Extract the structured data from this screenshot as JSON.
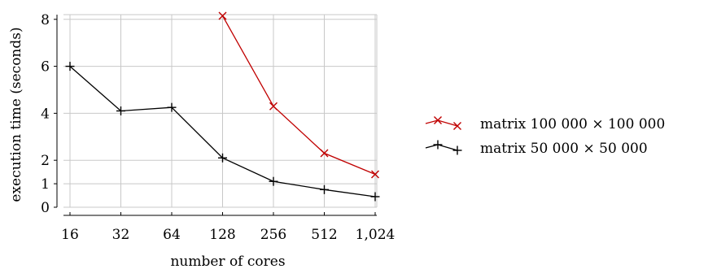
{
  "chart_data": {
    "type": "line",
    "xlabel": "number of cores",
    "ylabel": "execution time (seconds)",
    "x_scale": "log2",
    "categories": [
      "16",
      "32",
      "64",
      "128",
      "256",
      "512",
      "1,024"
    ],
    "x": [
      16,
      32,
      64,
      128,
      256,
      512,
      1024
    ],
    "ylim": [
      0,
      8.2
    ],
    "yticks": [
      0,
      1,
      2,
      4,
      6,
      8
    ],
    "ytick_labels": [
      "0",
      "1",
      "2",
      "4",
      "6",
      "8"
    ],
    "grid": true,
    "legend_position": "right",
    "series": [
      {
        "name": "matrix 100 000 × 100 000",
        "color": "#c00000",
        "marker": "x",
        "x": [
          128,
          256,
          512,
          1024
        ],
        "values": [
          8.15,
          4.3,
          2.3,
          1.4
        ]
      },
      {
        "name": "matrix 50 000 × 50 000",
        "color": "#000000",
        "marker": "plus",
        "x": [
          16,
          32,
          64,
          128,
          256,
          512,
          1024
        ],
        "values": [
          6.0,
          4.1,
          4.25,
          2.1,
          1.1,
          0.75,
          0.45
        ]
      }
    ]
  }
}
